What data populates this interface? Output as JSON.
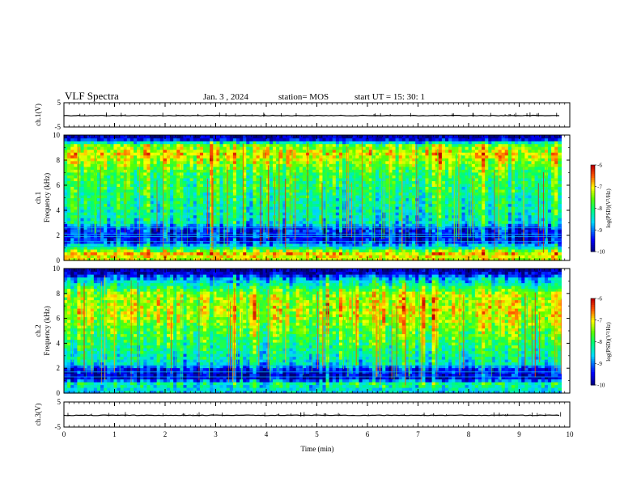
{
  "header": {
    "title": "VLF Spectra",
    "date": "Jan. 3 , 2024",
    "station": "station= MOS",
    "start": "start UT = 15: 30: 1"
  },
  "chart_data": [
    {
      "type": "line",
      "name": "ch1-voltage-panel",
      "ylabel": "ch.1(V)",
      "ylim": [
        -5,
        5
      ],
      "yticks": [
        "5",
        "-5"
      ],
      "xlim": [
        0,
        10
      ],
      "trace_level": -0.3
    },
    {
      "type": "heatmap",
      "name": "ch1-spectrogram",
      "ylabel_lines": [
        "ch.1",
        "Frequency (kHz)"
      ],
      "ylim": [
        0,
        10
      ],
      "yticks": [
        0,
        2,
        4,
        6,
        8,
        10
      ],
      "xlim": [
        0,
        10
      ],
      "data_extent_min": 9.83,
      "z_label": "log(PSD)(V²/Hz)",
      "z_range": [
        -10,
        -6
      ],
      "z_ticks": [
        "-6",
        "-7",
        "-8",
        "-9",
        "-10"
      ],
      "frequency_profile_khz": [
        [
          0,
          -7.2
        ],
        [
          0.6,
          -6.9
        ],
        [
          1.2,
          -8.6
        ],
        [
          1.6,
          -9.5
        ],
        [
          2.6,
          -9.3
        ],
        [
          3,
          -8.4
        ],
        [
          5,
          -8.1
        ],
        [
          7,
          -7.8
        ],
        [
          8.5,
          -7.0
        ],
        [
          9.3,
          -7.6
        ],
        [
          9.6,
          -9.3
        ],
        [
          10,
          -9.9
        ]
      ],
      "stripe_lines_khz": [
        1.1,
        1.5,
        1.9,
        2.1,
        2.6
      ]
    },
    {
      "type": "heatmap",
      "name": "ch2-spectrogram",
      "ylabel_lines": [
        "ch.2",
        "Frequency (kHz)"
      ],
      "ylim": [
        0,
        10
      ],
      "yticks": [
        0,
        2,
        4,
        6,
        8,
        10
      ],
      "xlim": [
        0,
        10
      ],
      "data_extent_min": 9.83,
      "z_label": "log(PSD)(V²/Hz)",
      "z_range": [
        -10,
        -6
      ],
      "z_ticks": [
        "-6",
        "-7",
        "-8",
        "-9",
        "-10"
      ],
      "frequency_profile_khz": [
        [
          0,
          -8.6
        ],
        [
          0.8,
          -8.2
        ],
        [
          1.2,
          -9.7
        ],
        [
          2.0,
          -9.4
        ],
        [
          2.4,
          -8.5
        ],
        [
          4,
          -8.0
        ],
        [
          6.5,
          -7.2
        ],
        [
          8,
          -7.4
        ],
        [
          9.2,
          -8.8
        ],
        [
          9.6,
          -9.6
        ],
        [
          10,
          -9.9
        ]
      ],
      "stripe_lines_khz": [
        1.3,
        1.7,
        2.2
      ]
    },
    {
      "type": "line",
      "name": "ch3-voltage-panel",
      "ylabel": "ch.3(V)",
      "ylim": [
        -5,
        5
      ],
      "yticks": [
        "5",
        "-5"
      ],
      "xlim": [
        0,
        10
      ],
      "trace_level": -0.3
    }
  ],
  "x_axis": {
    "label": "Time (min)",
    "ticks": [
      "0",
      "1",
      "2",
      "3",
      "4",
      "5",
      "6",
      "7",
      "8",
      "9",
      "10"
    ]
  },
  "colors": {
    "axis": "#000000",
    "background": "#ffffff"
  }
}
